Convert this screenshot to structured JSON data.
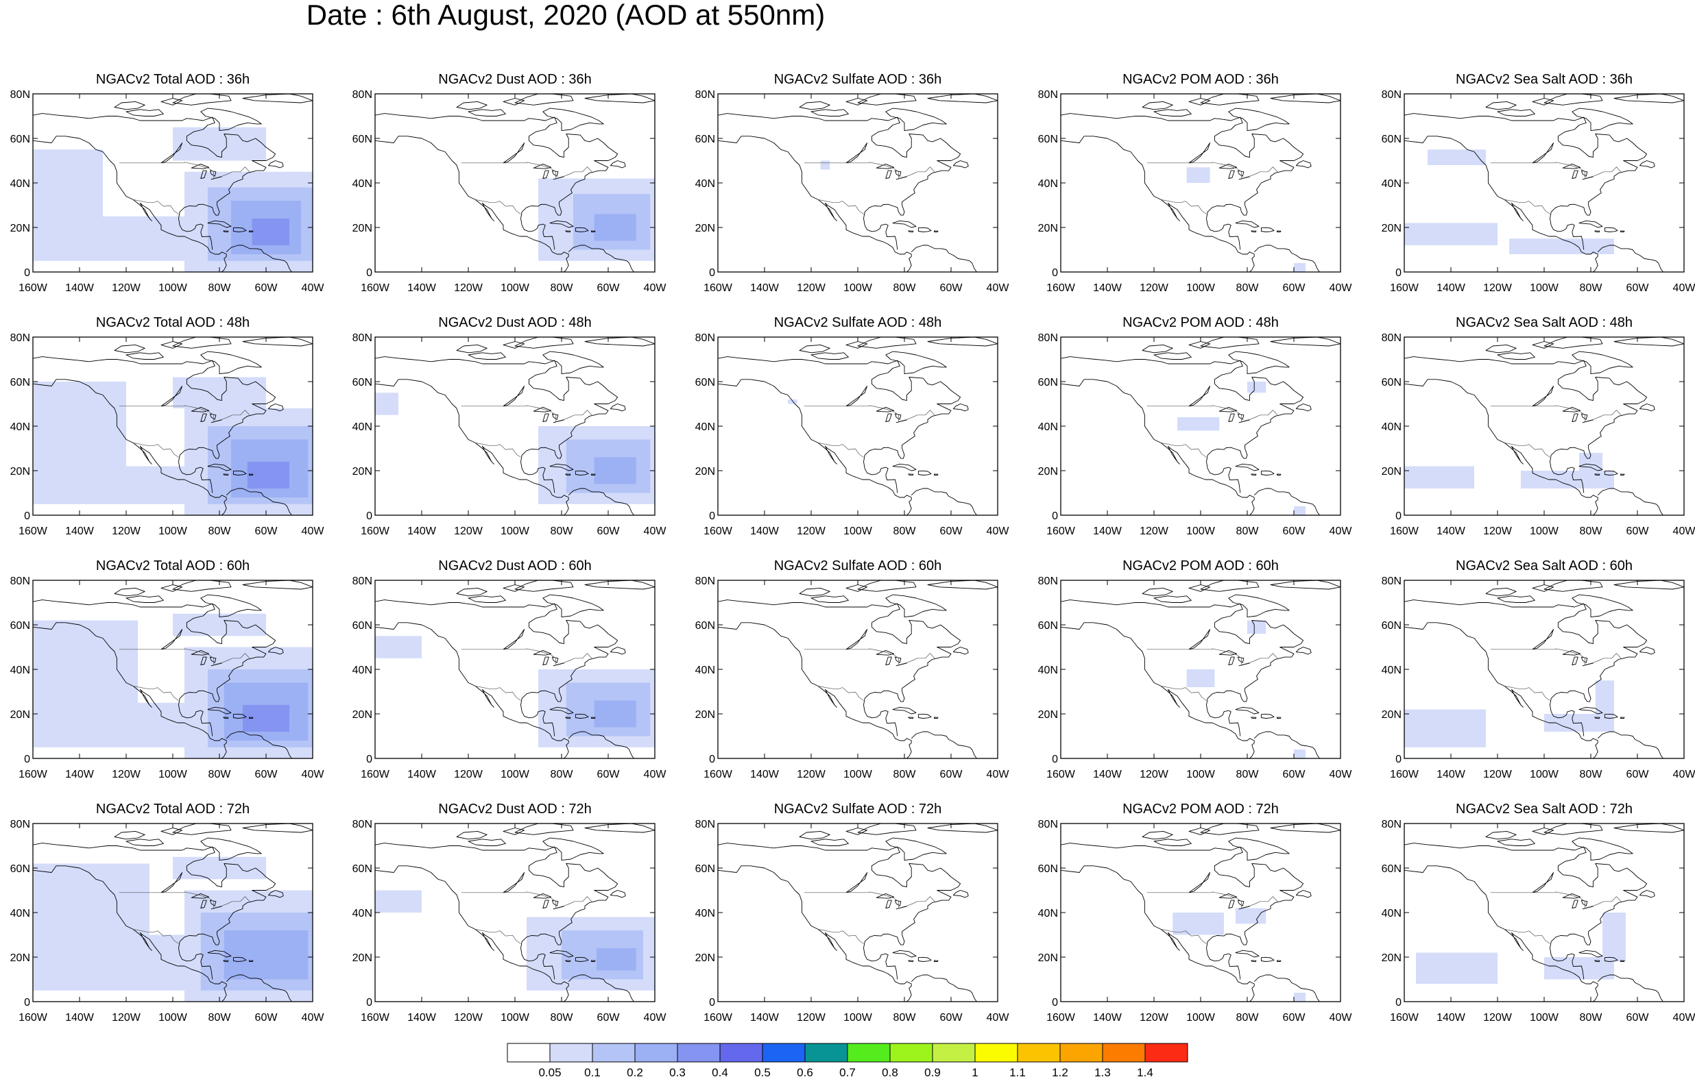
{
  "title": "Date : 6th August, 2020 (AOD at 550nm)",
  "map": {
    "lon_range": [
      -160,
      -40
    ],
    "lat_range": [
      0,
      80
    ],
    "x_ticks": [
      "160W",
      "140W",
      "120W",
      "100W",
      "80W",
      "60W",
      "40W"
    ],
    "y_ticks": [
      "80N",
      "60N",
      "40N",
      "20N",
      "0"
    ]
  },
  "panels": [
    [
      "NGACv2 Total AOD : 36h",
      "NGACv2 Dust AOD : 36h",
      "NGACv2 Sulfate AOD : 36h",
      "NGACv2 POM AOD : 36h",
      "NGACv2 Sea Salt AOD : 36h"
    ],
    [
      "NGACv2 Total AOD : 48h",
      "NGACv2 Dust AOD : 48h",
      "NGACv2 Sulfate AOD : 48h",
      "NGACv2 POM AOD : 48h",
      "NGACv2 Sea Salt AOD : 48h"
    ],
    [
      "NGACv2 Total AOD : 60h",
      "NGACv2 Dust AOD : 60h",
      "NGACv2 Sulfate AOD : 60h",
      "NGACv2 POM AOD : 60h",
      "NGACv2 Sea Salt AOD : 60h"
    ],
    [
      "NGACv2 Total AOD : 72h",
      "NGACv2 Dust AOD : 72h",
      "NGACv2 Sulfate AOD : 72h",
      "NGACv2 POM AOD : 72h",
      "NGACv2 Sea Salt  AOD : 72h"
    ]
  ],
  "colorbar": {
    "labels": [
      "0.05",
      "0.1",
      "0.2",
      "0.3",
      "0.4",
      "0.5",
      "0.6",
      "0.7",
      "0.8",
      "0.9",
      "1",
      "1.1",
      "1.2",
      "1.3",
      "1.4"
    ],
    "colors": [
      "#ffffff",
      "#d4dcfa",
      "#b4c4f6",
      "#9cb0f4",
      "#8494f0",
      "#6468ec",
      "#1c64f4",
      "#089494",
      "#54ec1c",
      "#9cf41c",
      "#c4f044",
      "#fcfc00",
      "#fcc400",
      "#fca400",
      "#fc7c00",
      "#fc2c14"
    ]
  },
  "chart_data": {
    "type": "heatmap",
    "variable": "AOD at 550nm",
    "rows": [
      "36h",
      "48h",
      "60h",
      "72h"
    ],
    "columns": [
      "NGACv2 Total AOD",
      "NGACv2 Dust AOD",
      "NGACv2 Sulfate AOD",
      "NGACv2 POM AOD",
      "NGACv2 Sea Salt AOD"
    ],
    "lon_range": [
      -160,
      -40
    ],
    "lat_range": [
      0,
      80
    ],
    "patches": [
      [
        [
          {
            "lon": [
              -160,
              -130
            ],
            "lat": [
              5,
              55
            ],
            "level": 1
          },
          {
            "lon": [
              -130,
              -95
            ],
            "lat": [
              5,
              25
            ],
            "level": 1
          },
          {
            "lon": [
              -100,
              -60
            ],
            "lat": [
              50,
              65
            ],
            "level": 1
          },
          {
            "lon": [
              -95,
              -40
            ],
            "lat": [
              0,
              45
            ],
            "level": 1
          },
          {
            "lon": [
              -85,
              -40
            ],
            "lat": [
              5,
              38
            ],
            "level": 2
          },
          {
            "lon": [
              -75,
              -45
            ],
            "lat": [
              8,
              32
            ],
            "level": 3
          },
          {
            "lon": [
              -66,
              -50
            ],
            "lat": [
              12,
              24
            ],
            "level": 4
          }
        ],
        [
          {
            "lon": [
              -90,
              -40
            ],
            "lat": [
              5,
              42
            ],
            "level": 1
          },
          {
            "lon": [
              -75,
              -42
            ],
            "lat": [
              10,
              35
            ],
            "level": 2
          },
          {
            "lon": [
              -66,
              -48
            ],
            "lat": [
              14,
              26
            ],
            "level": 3
          }
        ],
        [
          {
            "lon": [
              -116,
              -112
            ],
            "lat": [
              46,
              50
            ],
            "level": 1
          }
        ],
        [
          {
            "lon": [
              -106,
              -96
            ],
            "lat": [
              40,
              47
            ],
            "level": 1
          },
          {
            "lon": [
              -60,
              -55
            ],
            "lat": [
              0,
              4
            ],
            "level": 1
          }
        ],
        [
          {
            "lon": [
              -160,
              -120
            ],
            "lat": [
              12,
              22
            ],
            "level": 1
          },
          {
            "lon": [
              -150,
              -125
            ],
            "lat": [
              48,
              55
            ],
            "level": 1
          },
          {
            "lon": [
              -115,
              -70
            ],
            "lat": [
              8,
              15
            ],
            "level": 1
          }
        ]
      ],
      [
        [
          {
            "lon": [
              -160,
              -120
            ],
            "lat": [
              5,
              60
            ],
            "level": 1
          },
          {
            "lon": [
              -120,
              -90
            ],
            "lat": [
              5,
              22
            ],
            "level": 1
          },
          {
            "lon": [
              -100,
              -60
            ],
            "lat": [
              48,
              62
            ],
            "level": 1
          },
          {
            "lon": [
              -95,
              -40
            ],
            "lat": [
              0,
              48
            ],
            "level": 1
          },
          {
            "lon": [
              -85,
              -40
            ],
            "lat": [
              5,
              40
            ],
            "level": 2
          },
          {
            "lon": [
              -75,
              -42
            ],
            "lat": [
              8,
              34
            ],
            "level": 3
          },
          {
            "lon": [
              -68,
              -50
            ],
            "lat": [
              12,
              24
            ],
            "level": 4
          }
        ],
        [
          {
            "lon": [
              -160,
              -150
            ],
            "lat": [
              45,
              55
            ],
            "level": 1
          },
          {
            "lon": [
              -90,
              -40
            ],
            "lat": [
              5,
              40
            ],
            "level": 1
          },
          {
            "lon": [
              -78,
              -42
            ],
            "lat": [
              10,
              34
            ],
            "level": 2
          },
          {
            "lon": [
              -66,
              -48
            ],
            "lat": [
              14,
              26
            ],
            "level": 3
          }
        ],
        [
          {
            "lon": [
              -130,
              -126
            ],
            "lat": [
              50,
              52
            ],
            "level": 1
          }
        ],
        [
          {
            "lon": [
              -110,
              -92
            ],
            "lat": [
              38,
              44
            ],
            "level": 1
          },
          {
            "lon": [
              -80,
              -72
            ],
            "lat": [
              55,
              60
            ],
            "level": 1
          },
          {
            "lon": [
              -60,
              -55
            ],
            "lat": [
              0,
              4
            ],
            "level": 1
          }
        ],
        [
          {
            "lon": [
              -160,
              -130
            ],
            "lat": [
              12,
              22
            ],
            "level": 1
          },
          {
            "lon": [
              -110,
              -70
            ],
            "lat": [
              12,
              20
            ],
            "level": 1
          },
          {
            "lon": [
              -85,
              -75
            ],
            "lat": [
              20,
              28
            ],
            "level": 1
          }
        ]
      ],
      [
        [
          {
            "lon": [
              -160,
              -115
            ],
            "lat": [
              5,
              62
            ],
            "level": 1
          },
          {
            "lon": [
              -115,
              -90
            ],
            "lat": [
              5,
              25
            ],
            "level": 1
          },
          {
            "lon": [
              -100,
              -60
            ],
            "lat": [
              55,
              65
            ],
            "level": 1
          },
          {
            "lon": [
              -95,
              -40
            ],
            "lat": [
              0,
              50
            ],
            "level": 1
          },
          {
            "lon": [
              -85,
              -40
            ],
            "lat": [
              5,
              40
            ],
            "level": 2
          },
          {
            "lon": [
              -78,
              -42
            ],
            "lat": [
              8,
              34
            ],
            "level": 3
          },
          {
            "lon": [
              -70,
              -50
            ],
            "lat": [
              12,
              24
            ],
            "level": 4
          }
        ],
        [
          {
            "lon": [
              -160,
              -140
            ],
            "lat": [
              45,
              55
            ],
            "level": 1
          },
          {
            "lon": [
              -90,
              -40
            ],
            "lat": [
              5,
              40
            ],
            "level": 1
          },
          {
            "lon": [
              -78,
              -42
            ],
            "lat": [
              10,
              34
            ],
            "level": 2
          },
          {
            "lon": [
              -66,
              -48
            ],
            "lat": [
              14,
              26
            ],
            "level": 3
          }
        ],
        [],
        [
          {
            "lon": [
              -106,
              -94
            ],
            "lat": [
              32,
              40
            ],
            "level": 1
          },
          {
            "lon": [
              -80,
              -72
            ],
            "lat": [
              56,
              62
            ],
            "level": 1
          },
          {
            "lon": [
              -60,
              -55
            ],
            "lat": [
              0,
              4
            ],
            "level": 1
          }
        ],
        [
          {
            "lon": [
              -160,
              -125
            ],
            "lat": [
              5,
              22
            ],
            "level": 1
          },
          {
            "lon": [
              -100,
              -70
            ],
            "lat": [
              12,
              20
            ],
            "level": 1
          },
          {
            "lon": [
              -78,
              -70
            ],
            "lat": [
              20,
              35
            ],
            "level": 1
          }
        ]
      ],
      [
        [
          {
            "lon": [
              -160,
              -110
            ],
            "lat": [
              5,
              62
            ],
            "level": 1
          },
          {
            "lon": [
              -110,
              -90
            ],
            "lat": [
              5,
              30
            ],
            "level": 1
          },
          {
            "lon": [
              -100,
              -60
            ],
            "lat": [
              55,
              65
            ],
            "level": 1
          },
          {
            "lon": [
              -95,
              -40
            ],
            "lat": [
              0,
              50
            ],
            "level": 1
          },
          {
            "lon": [
              -88,
              -40
            ],
            "lat": [
              5,
              40
            ],
            "level": 2
          },
          {
            "lon": [
              -78,
              -42
            ],
            "lat": [
              10,
              32
            ],
            "level": 3
          }
        ],
        [
          {
            "lon": [
              -160,
              -140
            ],
            "lat": [
              40,
              50
            ],
            "level": 1
          },
          {
            "lon": [
              -95,
              -40
            ],
            "lat": [
              5,
              38
            ],
            "level": 1
          },
          {
            "lon": [
              -80,
              -45
            ],
            "lat": [
              10,
              32
            ],
            "level": 2
          },
          {
            "lon": [
              -65,
              -48
            ],
            "lat": [
              14,
              24
            ],
            "level": 3
          }
        ],
        [],
        [
          {
            "lon": [
              -112,
              -90
            ],
            "lat": [
              30,
              40
            ],
            "level": 1
          },
          {
            "lon": [
              -85,
              -72
            ],
            "lat": [
              35,
              42
            ],
            "level": 1
          },
          {
            "lon": [
              -60,
              -55
            ],
            "lat": [
              0,
              4
            ],
            "level": 1
          }
        ],
        [
          {
            "lon": [
              -155,
              -120
            ],
            "lat": [
              8,
              22
            ],
            "level": 1
          },
          {
            "lon": [
              -100,
              -70
            ],
            "lat": [
              10,
              20
            ],
            "level": 1
          },
          {
            "lon": [
              -75,
              -65
            ],
            "lat": [
              18,
              40
            ],
            "level": 1
          }
        ]
      ]
    ]
  }
}
